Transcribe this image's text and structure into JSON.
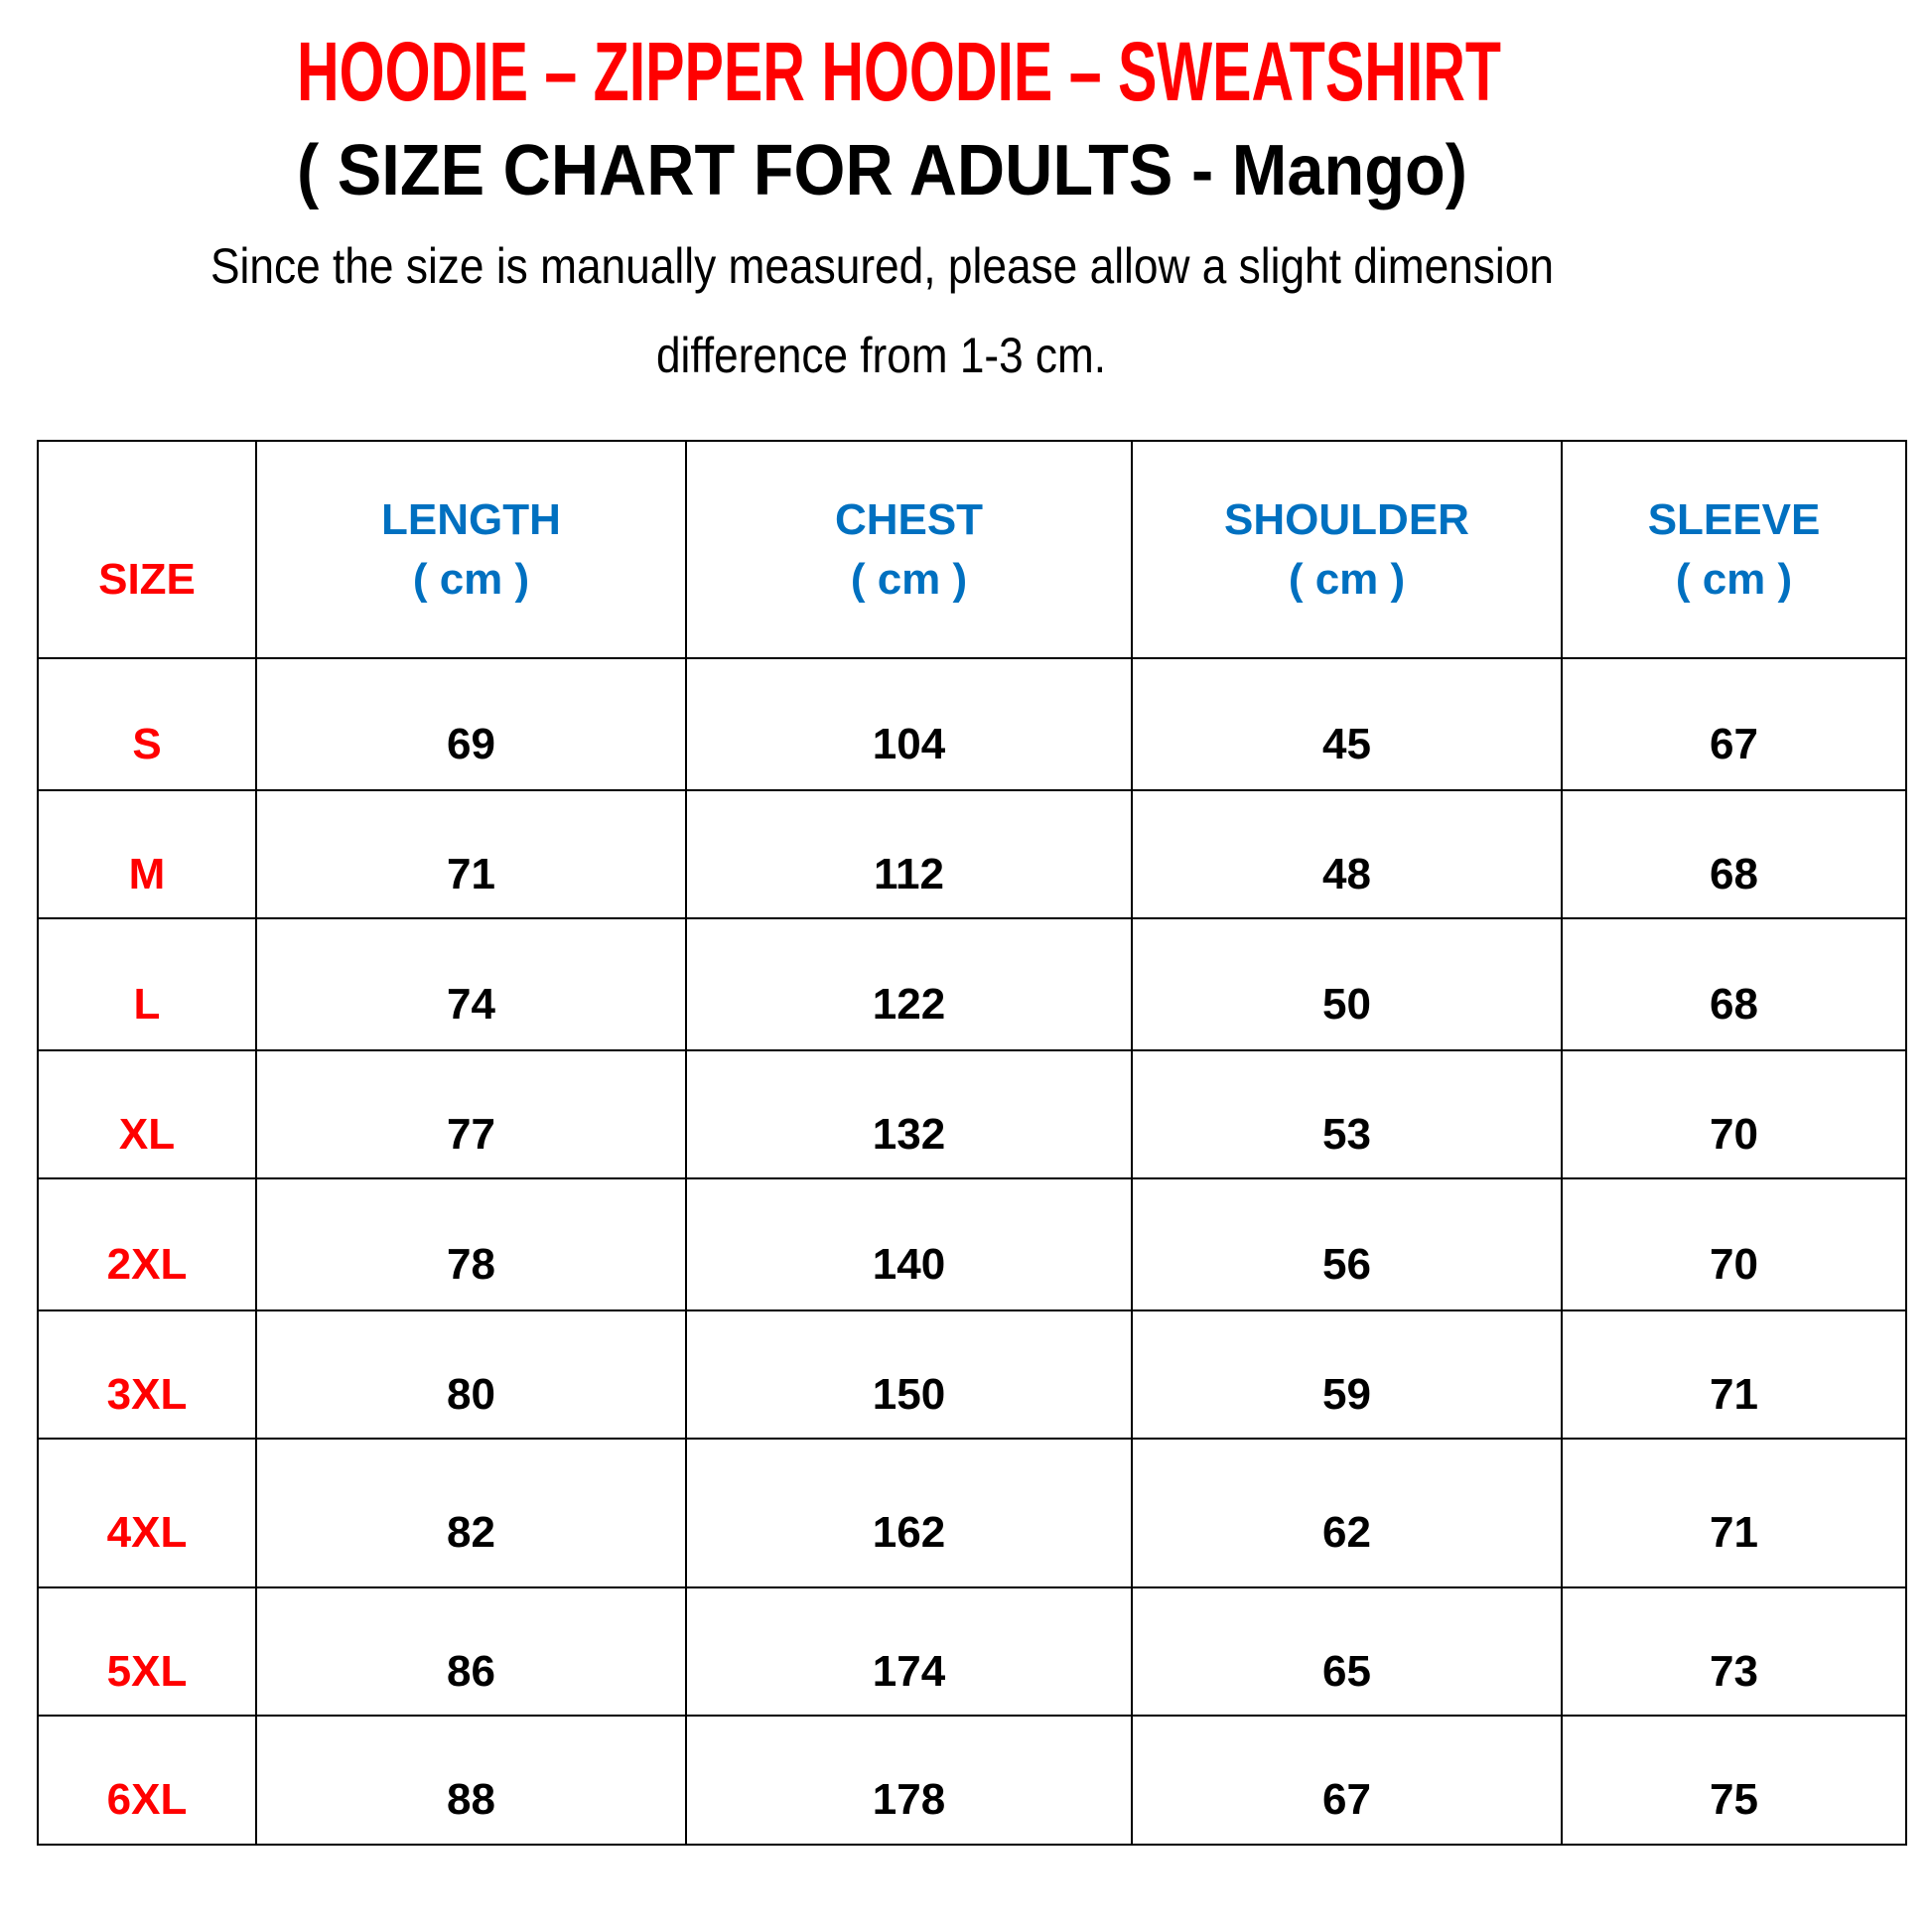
{
  "title": "HOODIE – ZIPPER HOODIE – SWEATSHIRT",
  "subtitle": "( SIZE CHART FOR ADULTS - Mango)",
  "note_line1": "Since the size is manually measured, please allow a slight dimension",
  "note_line2": "difference from 1-3 cm.",
  "colors": {
    "title": "#ff0000",
    "size_labels": "#ff0000",
    "headers": "#0070c0"
  },
  "table": {
    "headers": [
      {
        "label": "SIZE",
        "unit": ""
      },
      {
        "label": "LENGTH",
        "unit": "( cm )"
      },
      {
        "label": "CHEST",
        "unit": "( cm )"
      },
      {
        "label": "SHOULDER",
        "unit": "( cm )"
      },
      {
        "label": "SLEEVE",
        "unit": "( cm )"
      }
    ],
    "rows": [
      [
        "S",
        "69",
        "104",
        "45",
        "67"
      ],
      [
        "M",
        "71",
        "112",
        "48",
        "68"
      ],
      [
        "L",
        "74",
        "122",
        "50",
        "68"
      ],
      [
        "XL",
        "77",
        "132",
        "53",
        "70"
      ],
      [
        "2XL",
        "78",
        "140",
        "56",
        "70"
      ],
      [
        "3XL",
        "80",
        "150",
        "59",
        "71"
      ],
      [
        "4XL",
        "82",
        "162",
        "62",
        "71"
      ],
      [
        "5XL",
        "86",
        "174",
        "65",
        "73"
      ],
      [
        "6XL",
        "88",
        "178",
        "67",
        "75"
      ]
    ]
  }
}
